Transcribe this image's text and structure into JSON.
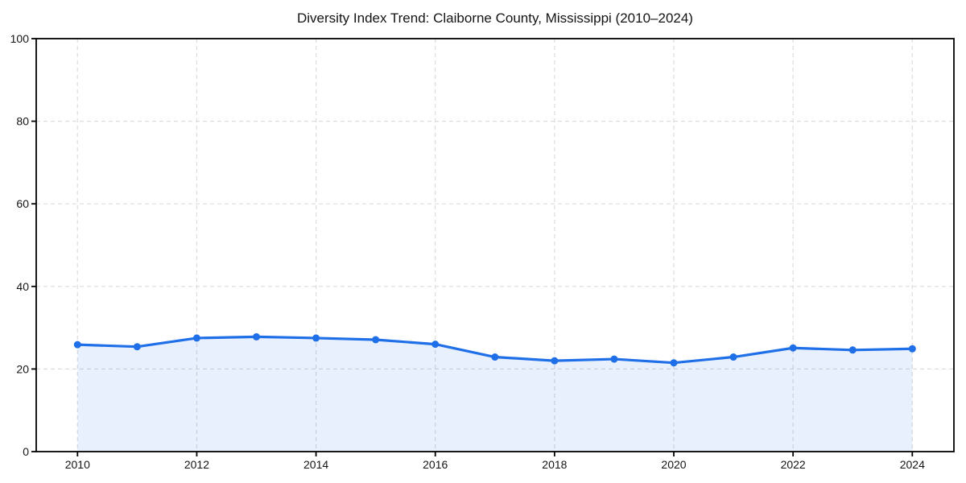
{
  "chart_data": {
    "type": "area",
    "title": "Diversity Index Trend: Claiborne County, Mississippi (2010–2024)",
    "x": [
      2010,
      2011,
      2012,
      2013,
      2014,
      2015,
      2016,
      2017,
      2018,
      2019,
      2020,
      2021,
      2022,
      2023,
      2024
    ],
    "values": [
      25.9,
      25.4,
      27.5,
      27.8,
      27.5,
      27.1,
      26.0,
      22.9,
      22.0,
      22.4,
      21.5,
      22.9,
      25.1,
      24.6,
      24.9
    ],
    "xlabel": "",
    "ylabel": "",
    "ylim": [
      0,
      100
    ],
    "yticks": [
      0,
      20,
      40,
      60,
      80,
      100
    ],
    "xticks": [
      2010,
      2012,
      2014,
      2016,
      2018,
      2020,
      2022,
      2024
    ],
    "grid": true,
    "grid_style": "dashed",
    "legend": false,
    "marker": "circle",
    "colors": {
      "line": "#1f6fe8",
      "fill": "#1f6fe8",
      "fill_opacity": 0.1,
      "grid": "#dcdcdc",
      "axis": "#000000",
      "text": "#141414",
      "background": "#ffffff"
    }
  }
}
